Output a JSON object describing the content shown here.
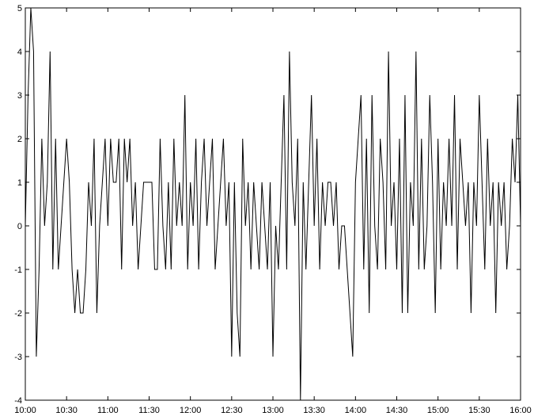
{
  "chart_data": {
    "type": "line",
    "color": "#000000",
    "x": [
      600,
      602,
      604,
      606,
      608,
      610,
      612,
      614,
      616,
      618,
      620,
      622,
      624,
      626,
      628,
      630,
      632,
      634,
      636,
      638,
      640,
      642,
      644,
      646,
      648,
      650,
      652,
      654,
      656,
      658,
      660,
      662,
      664,
      666,
      668,
      670,
      672,
      674,
      676,
      678,
      680,
      682,
      684,
      686,
      688,
      690,
      692,
      694,
      696,
      698,
      700,
      702,
      704,
      706,
      708,
      710,
      712,
      714,
      716,
      718,
      720,
      722,
      724,
      726,
      728,
      730,
      732,
      734,
      736,
      738,
      740,
      742,
      744,
      746,
      748,
      750,
      752,
      754,
      756,
      758,
      760,
      762,
      764,
      766,
      768,
      770,
      772,
      774,
      776,
      778,
      780,
      782,
      784,
      786,
      788,
      790,
      792,
      794,
      796,
      798,
      800,
      802,
      804,
      806,
      808,
      810,
      812,
      814,
      816,
      818,
      820,
      822,
      824,
      826,
      828,
      830,
      832,
      834,
      836,
      838,
      840,
      842,
      844,
      846,
      848,
      850,
      852,
      854,
      856,
      858,
      860,
      862,
      864,
      866,
      868,
      870,
      872,
      874,
      876,
      878,
      880,
      882,
      884,
      886,
      888,
      890,
      892,
      894,
      896,
      898,
      900,
      902,
      904,
      906,
      908,
      910,
      912,
      914,
      916,
      918,
      920,
      922,
      924,
      926,
      928,
      930,
      932,
      934,
      936,
      938,
      940,
      942,
      944,
      946,
      948,
      950,
      952,
      954,
      956,
      958,
      960
    ],
    "values": [
      0,
      3,
      5,
      4,
      -3,
      -1,
      2,
      0,
      1,
      4,
      -1,
      2,
      -1,
      0,
      1,
      2,
      1,
      -1,
      -2,
      -1,
      -2,
      -2,
      -1,
      1,
      0,
      2,
      -2,
      0,
      1,
      2,
      0,
      2,
      1,
      1,
      2,
      -1,
      2,
      1,
      2,
      0,
      1,
      -1,
      0,
      1,
      1,
      1,
      1,
      -1,
      -1,
      2,
      0,
      -1,
      1,
      -1,
      2,
      0,
      1,
      0,
      3,
      -1,
      1,
      0,
      2,
      -1,
      1,
      2,
      0,
      1,
      2,
      -1,
      0,
      1,
      2,
      0,
      1,
      -3,
      1,
      -2,
      -3,
      2,
      0,
      1,
      -1,
      1,
      0,
      -1,
      1,
      0,
      -1,
      1,
      -3,
      0,
      -1,
      1,
      3,
      -1,
      4,
      1,
      0,
      2,
      -4,
      1,
      -1,
      1,
      3,
      0,
      2,
      -1,
      1,
      0,
      1,
      1,
      0,
      1,
      -1,
      0,
      0,
      -1,
      -2,
      -3,
      1,
      2,
      3,
      -1,
      2,
      -2,
      3,
      0,
      -1,
      2,
      1,
      -1,
      4,
      0,
      1,
      -1,
      2,
      -2,
      3,
      -2,
      1,
      0,
      4,
      -1,
      2,
      -1,
      0,
      3,
      1,
      -2,
      2,
      -1,
      1,
      0,
      2,
      0,
      3,
      -1,
      2,
      1,
      0,
      1,
      -2,
      1,
      0,
      3,
      1,
      -1,
      2,
      0,
      1,
      -2,
      1,
      0,
      1,
      -1,
      0,
      2,
      1,
      3,
      0
    ],
    "xlim": [
      600,
      960
    ],
    "xticks": [
      {
        "value": 600,
        "label": "10:00"
      },
      {
        "value": 630,
        "label": "10:30"
      },
      {
        "value": 660,
        "label": "11:00"
      },
      {
        "value": 690,
        "label": "11:30"
      },
      {
        "value": 720,
        "label": "12:00"
      },
      {
        "value": 750,
        "label": "12:30"
      },
      {
        "value": 780,
        "label": "13:00"
      },
      {
        "value": 810,
        "label": "13:30"
      },
      {
        "value": 840,
        "label": "14:00"
      },
      {
        "value": 870,
        "label": "14:30"
      },
      {
        "value": 900,
        "label": "15:00"
      },
      {
        "value": 930,
        "label": "15:30"
      },
      {
        "value": 960,
        "label": "16:00"
      }
    ],
    "ylim": [
      -4,
      5
    ],
    "yticks": [
      -4,
      -3,
      -2,
      -1,
      0,
      1,
      2,
      3,
      4,
      5
    ],
    "grid": false
  }
}
